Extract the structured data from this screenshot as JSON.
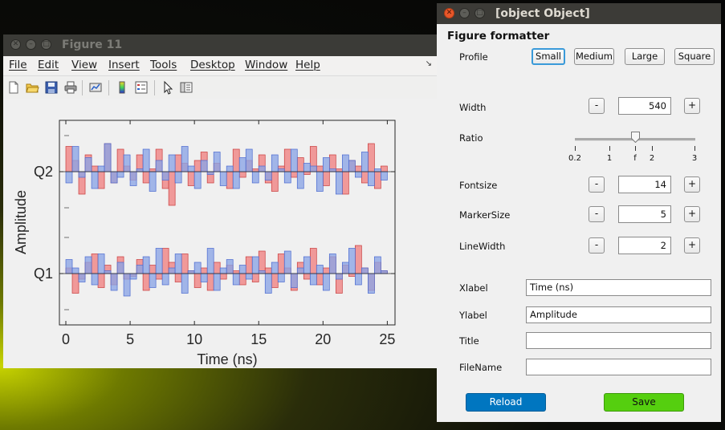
{
  "figure_window": {
    "title": "Figure 11",
    "menu": [
      "File",
      "Edit",
      "View",
      "Insert",
      "Tools",
      "Desktop",
      "Window",
      "Help"
    ],
    "toolbar_icons": [
      "new-figure-icon",
      "open-file-icon",
      "save-icon",
      "print-icon",
      "link-plot-icon",
      "colorbar-icon",
      "legend-icon",
      "pointer-icon",
      "property-editor-icon"
    ]
  },
  "chart_data": {
    "type": "line",
    "subtype": "stairs-fill",
    "xlabel": "Time (ns)",
    "ylabel": "Amplitude",
    "xlim": [
      0,
      25
    ],
    "xticks": [
      "0",
      "5",
      "10",
      "15",
      "20",
      "25"
    ],
    "yticks": [
      "Q1",
      "Q2"
    ],
    "step": 0.5,
    "series": [
      {
        "color": "#f08080",
        "stroke": "#c83c3c",
        "channel": "Q2",
        "values": [
          0.45,
          0.2,
          -0.4,
          0.3,
          0.1,
          -0.3,
          0.5,
          -0.2,
          0.4,
          0.1,
          -0.15,
          0.3,
          -0.2,
          0.05,
          0.4,
          -0.3,
          -0.6,
          0.3,
          0.15,
          -0.25,
          0.2,
          0.35,
          -0.2,
          0.15,
          0.0,
          -0.3,
          0.4,
          -0.1,
          0.2,
          0.05,
          0.3,
          -0.2,
          -0.35,
          0.1,
          0.4,
          -0.1,
          0.25,
          -0.05,
          0.45,
          0.1,
          -0.25,
          0.3,
          0.05,
          -0.4,
          0.2,
          0.1,
          -0.2,
          0.5,
          -0.3,
          0.1
        ]
      },
      {
        "color": "#8aa4e6",
        "stroke": "#4a6ad0",
        "channel": "Q2",
        "values": [
          -0.2,
          0.45,
          -0.1,
          0.25,
          -0.3,
          0.1,
          0.5,
          -0.2,
          -0.1,
          0.3,
          -0.25,
          0.05,
          0.4,
          -0.35,
          0.2,
          -0.15,
          0.3,
          -0.2,
          0.45,
          0.1,
          -0.3,
          0.2,
          -0.05,
          0.35,
          -0.25,
          0.1,
          -0.3,
          0.25,
          0.4,
          -0.2,
          0.1,
          -0.15,
          0.3,
          0.05,
          -0.2,
          0.4,
          -0.3,
          0.15,
          0.1,
          -0.35,
          0.25,
          0.05,
          -0.4,
          0.3,
          0.2,
          -0.1,
          0.35,
          -0.25,
          0.05,
          -0.15
        ]
      },
      {
        "color": "#f08080",
        "stroke": "#c83c3c",
        "channel": "Q1",
        "values": [
          0.1,
          -0.35,
          -0.1,
          0.2,
          0.35,
          -0.25,
          0.15,
          -0.2,
          0.3,
          -0.1,
          -0.05,
          0.25,
          -0.3,
          0.15,
          -0.1,
          0.45,
          0.2,
          -0.15,
          0.35,
          0.05,
          -0.25,
          0.1,
          -0.3,
          0.2,
          -0.1,
          0.15,
          0.05,
          -0.2,
          0.3,
          -0.15,
          0.4,
          0.1,
          -0.25,
          0.35,
          0.1,
          -0.3,
          0.2,
          -0.1,
          0.45,
          -0.2,
          0.1,
          0.3,
          -0.35,
          0.15,
          -0.05,
          0.5,
          0.1,
          -0.3,
          0.2,
          0.05
        ]
      },
      {
        "color": "#8aa4e6",
        "stroke": "#4a6ad0",
        "channel": "Q1",
        "values": [
          0.25,
          0.1,
          -0.15,
          0.3,
          -0.2,
          0.35,
          0.05,
          -0.3,
          0.2,
          -0.4,
          -0.1,
          0.15,
          0.3,
          -0.25,
          0.45,
          -0.2,
          0.1,
          0.35,
          -0.35,
          0.05,
          0.2,
          -0.15,
          0.45,
          -0.3,
          0.1,
          0.25,
          -0.2,
          0.15,
          -0.1,
          0.3,
          0.05,
          -0.35,
          0.2,
          -0.15,
          0.4,
          -0.25,
          0.1,
          0.3,
          -0.2,
          0.15,
          -0.3,
          0.35,
          -0.1,
          0.2,
          0.45,
          -0.2,
          0.1,
          -0.35,
          0.3,
          0.05
        ]
      }
    ]
  },
  "app_window": {
    "title": {
      "label": "Title",
      "value": ""
    },
    "heading": "Figure formatter",
    "profile": {
      "label": "Profile",
      "options": [
        "Small",
        "Medium",
        "Large",
        "Square"
      ],
      "selected": "Small"
    },
    "width": {
      "label": "Width",
      "value": "540",
      "minus": "-",
      "plus": "+"
    },
    "ratio": {
      "label": "Ratio",
      "ticks": [
        "0.2",
        "1",
        "f",
        "2",
        "3"
      ],
      "value": 1.618
    },
    "fontsize": {
      "label": "Fontsize",
      "value": "14",
      "minus": "-",
      "plus": "+"
    },
    "markersize": {
      "label": "MarkerSize",
      "value": "5",
      "minus": "-",
      "plus": "+"
    },
    "linewidth": {
      "label": "LineWidth",
      "value": "2",
      "minus": "-",
      "plus": "+"
    },
    "xlabel": {
      "label": "Xlabel",
      "value": "Time (ns)"
    },
    "ylabel": {
      "label": "Ylabel",
      "value": "Amplitude"
    },
    "filename": {
      "label": "FileName",
      "value": ""
    },
    "reload_label": "Reload",
    "save_label": "Save"
  },
  "colors": {
    "titlebar": "#3b3b37",
    "close_active": "#e8572a",
    "reload": "#0076c0",
    "save": "#55cf0f",
    "series_red": "#f08080",
    "series_blue": "#8aa4e6"
  }
}
